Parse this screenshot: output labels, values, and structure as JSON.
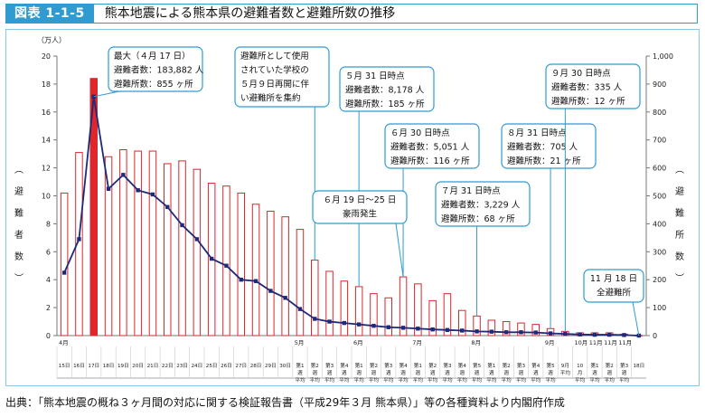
{
  "header": {
    "tag": "図表 1-1-5",
    "title": "熊本地震による熊本県の避難者数と避難所数の推移"
  },
  "source": "出典：「熊本地震の概ね３ヶ月間の対応に関する検証報告書（平成29年３月 熊本県）」等の各種資料より内閣府作成",
  "colors": {
    "accent": "#2f9bd0",
    "bar_stroke": "#d9262c",
    "bar_highlight": "#e0252b",
    "line": "#1c2a7a",
    "callout_border": "#2f9bd0"
  },
  "chart_data": {
    "type": "bar",
    "y_left": {
      "unit": "（万人）",
      "label": "（避難者数）",
      "ylim": [
        0,
        20
      ],
      "ticks": [
        "0",
        "2",
        "4",
        "6",
        "8",
        "10",
        "12",
        "14",
        "16",
        "18",
        "20"
      ]
    },
    "y_right": {
      "label": "（避難所数）",
      "ylim": [
        0,
        1000
      ],
      "ticks": [
        "0",
        "100",
        "200",
        "300",
        "400",
        "500",
        "600",
        "700",
        "800",
        "900",
        "1,000"
      ]
    },
    "month_labels": [
      {
        "text": "4月",
        "index": 0
      },
      {
        "text": "5月",
        "index": 16
      },
      {
        "text": "6月",
        "index": 20
      },
      {
        "text": "7月",
        "index": 24
      },
      {
        "text": "8月",
        "index": 28
      },
      {
        "text": "9月",
        "index": 33
      },
      {
        "text": "10月",
        "index": 35
      },
      {
        "text": "11月",
        "index": 36
      },
      {
        "text": "11月",
        "index": 37
      },
      {
        "text": "11月",
        "index": 38
      }
    ],
    "categories": [
      "15日",
      "16日",
      "17日",
      "18日",
      "19日",
      "20日",
      "21日",
      "22日",
      "23日",
      "24日",
      "25日",
      "26日",
      "27日",
      "28日",
      "29日",
      "30日",
      "第1週平均",
      "第2週平均",
      "第3週平均",
      "第4週平均",
      "第1週平均",
      "第2週平均",
      "第3週平均",
      "第4週平均",
      "第1週平均",
      "第2週平均",
      "第3週平均",
      "第4週平均",
      "第5週平均",
      "第1週平均",
      "第2週平均",
      "第3週平均",
      "第4週平均",
      "第5週平均",
      "9月平均",
      "10月平均",
      "第1週平均",
      "第2週平均",
      "第3週平均",
      "18日"
    ],
    "highlight_index": 2,
    "series": [
      {
        "name": "避難者数",
        "axis": "left",
        "values": [
          10.2,
          13.1,
          18.4,
          12.8,
          13.3,
          13.2,
          13.2,
          12.3,
          12.5,
          11.9,
          10.9,
          10.7,
          10.2,
          9.4,
          8.9,
          8.5,
          7.6,
          5.4,
          4.6,
          3.9,
          3.5,
          3.0,
          2.7,
          4.2,
          3.7,
          2.5,
          3.0,
          1.8,
          1.4,
          1.1,
          1.0,
          0.9,
          0.8,
          0.5,
          0.3,
          0.2,
          0.2,
          0.2,
          0.1,
          0.01
        ]
      },
      {
        "name": "避難所数",
        "axis": "right",
        "values": [
          225,
          345,
          855,
          525,
          575,
          520,
          505,
          460,
          395,
          345,
          275,
          250,
          200,
          195,
          160,
          135,
          95,
          60,
          50,
          45,
          40,
          35,
          30,
          28,
          25,
          22,
          20,
          18,
          15,
          14,
          12,
          12,
          11,
          8,
          6,
          4,
          3,
          3,
          2,
          0
        ]
      }
    ],
    "annotations": [
      {
        "lines": [
          "最大（４月 17 日）",
          "避難者数：183,882 人",
          "避難所数：855 ヶ所"
        ]
      },
      {
        "lines": [
          "避難所として使用",
          "されていた学校の",
          "５月９日再開に伴",
          "い避難所を集約"
        ]
      },
      {
        "lines": [
          "５月 31 日時点",
          "避難者数：8,178 人",
          "避難所数：185 ヶ所"
        ]
      },
      {
        "lines": [
          "６月 30 日時点",
          "避難者数：5,051 人",
          "避難所数：116 ヶ所"
        ]
      },
      {
        "lines": [
          "６月 19 日～25 日",
          "豪雨発生"
        ]
      },
      {
        "lines": [
          "７月 31 日時点",
          "避難者数：3,229 人",
          "避難所数：68 ヶ所"
        ]
      },
      {
        "lines": [
          "８月 31 日時点",
          "避難者数：705 人",
          "避難所数：21 ヶ所"
        ]
      },
      {
        "lines": [
          "９月 30 日時点",
          "避難者数：335 人",
          "避難所数：12 ヶ所"
        ]
      },
      {
        "lines": [
          "11 月 18 日",
          "全避難所"
        ]
      }
    ]
  }
}
